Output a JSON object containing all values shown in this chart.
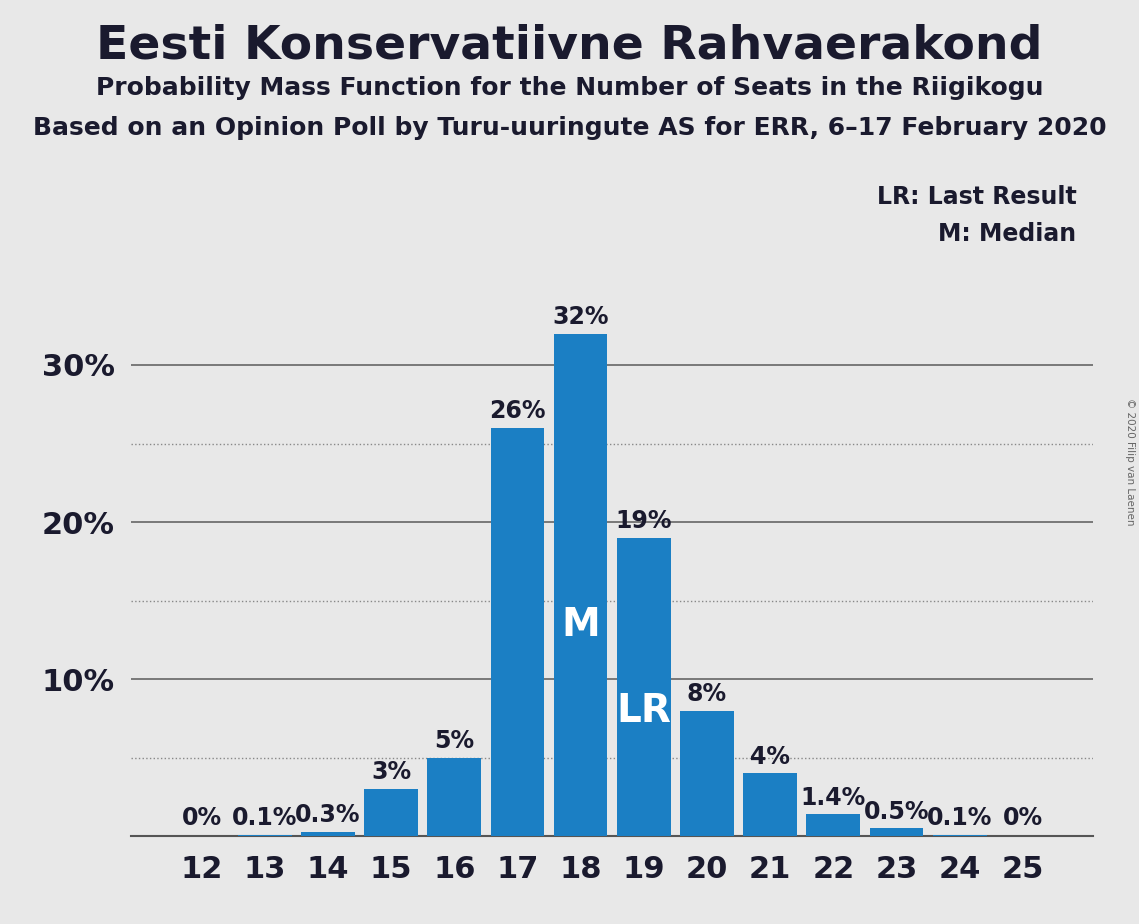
{
  "title": "Eesti Konservatiivne Rahvaerakond",
  "subtitle1": "Probability Mass Function for the Number of Seats in the Riigikogu",
  "subtitle2": "Based on an Opinion Poll by Turu-uuringute AS for ERR, 6–17 February 2020",
  "copyright": "© 2020 Filip van Laenen",
  "categories": [
    12,
    13,
    14,
    15,
    16,
    17,
    18,
    19,
    20,
    21,
    22,
    23,
    24,
    25
  ],
  "values": [
    0.001,
    0.1,
    0.3,
    3.0,
    5.0,
    26.0,
    32.0,
    19.0,
    8.0,
    4.0,
    1.4,
    0.5,
    0.1,
    0.001
  ],
  "labels": [
    "0%",
    "0.1%",
    "0.3%",
    "3%",
    "5%",
    "26%",
    "32%",
    "19%",
    "8%",
    "4%",
    "1.4%",
    "0.5%",
    "0.1%",
    "0%"
  ],
  "bar_color": "#1b7fc4",
  "background_color": "#e8e8e8",
  "median_bar": 18,
  "lr_bar": 19,
  "legend_lr": "LR: Last Result",
  "legend_m": "M: Median",
  "ylim_max": 35,
  "solid_grid_yticks": [
    10,
    20,
    30
  ],
  "dotted_grid_yticks": [
    5,
    15,
    25
  ],
  "ytick_positions": [
    10,
    20,
    30
  ],
  "ytick_labels": [
    "10%",
    "20%",
    "30%"
  ],
  "title_fontsize": 34,
  "subtitle_fontsize": 18,
  "bar_label_fontsize": 17,
  "axis_label_fontsize": 22,
  "inside_label_fontsize": 28
}
